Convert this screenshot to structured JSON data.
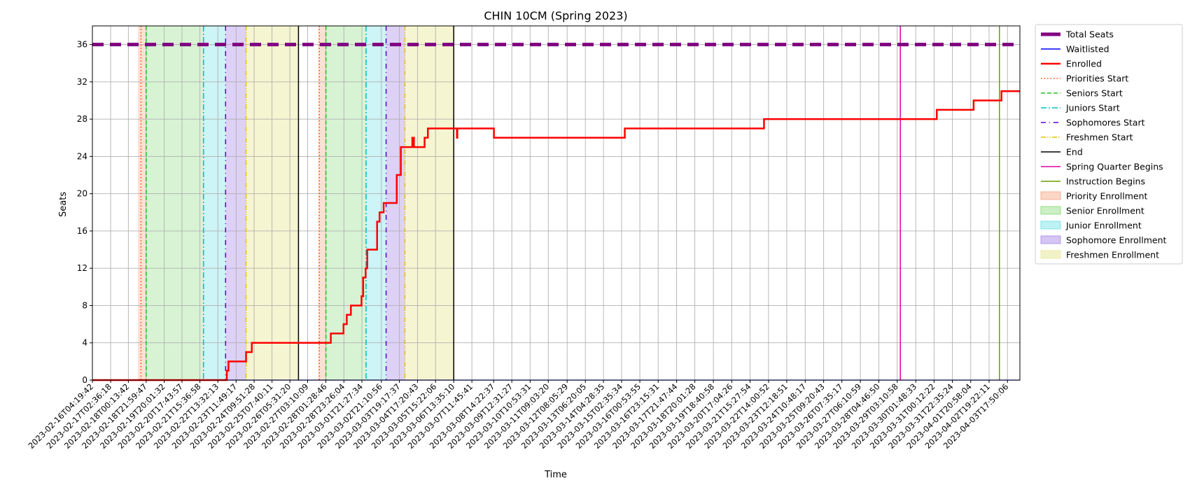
{
  "chart_data": {
    "type": "line",
    "title": "CHIN 10CM (Spring 2023)",
    "xlabel": "Time",
    "ylabel": "Seats",
    "ylim": [
      0,
      38
    ],
    "yticks": [
      0,
      4,
      8,
      12,
      16,
      20,
      24,
      28,
      32,
      36
    ],
    "xlim": [
      "2023-02-16T04:19:42",
      "2023-04-04T09:00:00"
    ],
    "grid": true,
    "legend_position": "outside-right",
    "x_tick_labels": [
      "2023-02-16T04:19:42",
      "2023-02-17T02:36:18",
      "2023-02-18T00:13:42",
      "2023-02-18T21:59:47",
      "2023-02-19T20:01:32",
      "2023-02-20T17:43:57",
      "2023-02-21T15:36:58",
      "2023-02-22T13:32:13",
      "2023-02-23T11:49:17",
      "2023-02-24T09:51:28",
      "2023-02-25T07:40:11",
      "2023-02-26T05:31:20",
      "2023-02-27T03:10:09",
      "2023-02-28T01:28:46",
      "2023-02-28T23:26:04",
      "2023-03-01T21:27:34",
      "2023-03-02T21:10:56",
      "2023-03-03T19:17:37",
      "2023-03-04T17:20:43",
      "2023-03-05T15:22:06",
      "2023-03-06T13:35:10",
      "2023-03-07T11:45:41",
      "2023-03-08T14:22:37",
      "2023-03-09T12:31:27",
      "2023-03-10T10:53:31",
      "2023-03-11T09:03:20",
      "2023-03-12T08:05:29",
      "2023-03-13T06:20:05",
      "2023-03-14T04:28:35",
      "2023-03-15T02:35:34",
      "2023-03-16T00:53:55",
      "2023-03-16T23:15:31",
      "2023-03-17T21:47:44",
      "2023-03-18T20:01:28",
      "2023-03-19T18:40:58",
      "2023-03-20T17:04:26",
      "2023-03-21T15:27:54",
      "2023-03-22T14:00:52",
      "2023-03-23T12:18:51",
      "2023-03-24T10:48:17",
      "2023-03-25T09:20:43",
      "2023-03-26T07:35:17",
      "2023-03-27T06:10:59",
      "2023-03-28T04:46:50",
      "2023-03-29T03:10:58",
      "2023-03-30T01:48:33",
      "2023-03-31T00:12:22",
      "2023-03-31T22:35:24",
      "2023-04-01T20:58:04",
      "2023-04-02T19:22:11",
      "2023-04-03T17:50:06"
    ],
    "series": [
      {
        "name": "Total Seats",
        "color": "#800080",
        "style": "dashed",
        "points": [
          [
            "2023-02-16T04:19:42",
            36
          ],
          [
            "2023-04-04T09:00:00",
            36
          ]
        ]
      },
      {
        "name": "Waitlisted",
        "color": "#0000ff",
        "style": "solid",
        "points": [
          [
            "2023-02-16T04:19:42",
            0
          ],
          [
            "2023-04-04T09:00:00",
            0
          ]
        ]
      },
      {
        "name": "Enrolled",
        "color": "#ff0000",
        "style": "solid",
        "points": [
          [
            "2023-02-16T04:19:42",
            0
          ],
          [
            "2023-02-23T00:00:00",
            0
          ],
          [
            "2023-02-23T00:30:00",
            1
          ],
          [
            "2023-02-23T02:30:00",
            2
          ],
          [
            "2023-02-24T00:00:00",
            3
          ],
          [
            "2023-02-24T07:00:00",
            4
          ],
          [
            "2023-02-28T07:00:00",
            4
          ],
          [
            "2023-02-28T07:30:00",
            5
          ],
          [
            "2023-02-28T23:00:00",
            6
          ],
          [
            "2023-03-01T03:00:00",
            7
          ],
          [
            "2023-03-01T08:00:00",
            8
          ],
          [
            "2023-03-01T21:00:00",
            9
          ],
          [
            "2023-03-01T23:00:00",
            11
          ],
          [
            "2023-03-02T02:00:00",
            12
          ],
          [
            "2023-03-02T04:00:00",
            14
          ],
          [
            "2023-03-02T16:00:00",
            17
          ],
          [
            "2023-03-02T19:00:00",
            18
          ],
          [
            "2023-03-03T00:00:00",
            19
          ],
          [
            "2023-03-03T16:00:00",
            22
          ],
          [
            "2023-03-03T21:00:00",
            25
          ],
          [
            "2023-03-04T11:00:00",
            26
          ],
          [
            "2023-03-04T13:00:00",
            25
          ],
          [
            "2023-03-05T02:00:00",
            26
          ],
          [
            "2023-03-05T06:00:00",
            27
          ],
          [
            "2023-03-06T17:00:00",
            27
          ],
          [
            "2023-03-06T17:30:00",
            26
          ],
          [
            "2023-03-06T18:00:00",
            27
          ],
          [
            "2023-03-08T14:22:37",
            27
          ],
          [
            "2023-03-08T14:40:00",
            26
          ],
          [
            "2023-03-15T06:00:00",
            26
          ],
          [
            "2023-03-15T06:30:00",
            27
          ],
          [
            "2023-03-22T08:00:00",
            27
          ],
          [
            "2023-03-22T08:30:00",
            28
          ],
          [
            "2023-03-31T03:00:00",
            28
          ],
          [
            "2023-03-31T03:30:00",
            29
          ],
          [
            "2023-04-02T00:00:00",
            29
          ],
          [
            "2023-04-02T00:30:00",
            30
          ],
          [
            "2023-04-03T10:00:00",
            30
          ],
          [
            "2023-04-03T10:30:00",
            31
          ],
          [
            "2023-04-04T09:00:00",
            31
          ]
        ]
      }
    ],
    "markers": [
      {
        "name": "Priorities Start",
        "color": "#ff4500",
        "style": "dotted",
        "times": [
          "2023-02-18T15:40:00",
          "2023-02-27T17:30:00"
        ]
      },
      {
        "name": "Seniors Start",
        "color": "#22c020",
        "style": "dashed",
        "times": [
          "2023-02-18T21:59:47",
          "2023-02-28T01:28:46"
        ]
      },
      {
        "name": "Juniors Start",
        "color": "#00bfbf",
        "style": "dashdot",
        "times": [
          "2023-02-21T20:00:00",
          "2023-03-02T02:30:00"
        ]
      },
      {
        "name": "Sophomores Start",
        "color": "#5a00d6",
        "style": "loosedashdot",
        "times": [
          "2023-02-22T23:00:00",
          "2023-03-03T03:00:00"
        ]
      },
      {
        "name": "Freshmen Start",
        "color": "#e6c300",
        "style": "dashdotdot",
        "times": [
          "2023-02-24T00:00:00",
          "2023-03-04T02:00:00"
        ]
      },
      {
        "name": "End",
        "color": "#000000",
        "style": "solid",
        "times": [
          "2023-02-26T16:00:00",
          "2023-03-06T13:35:10"
        ]
      },
      {
        "name": "Spring Quarter Begins",
        "color": "#e000a0",
        "style": "solid",
        "times": [
          "2023-03-29T07:00:00"
        ]
      },
      {
        "name": "Instruction Begins",
        "color": "#6b9e00",
        "style": "solid",
        "times": [
          "2023-04-03T08:00:00"
        ]
      }
    ],
    "spans": [
      {
        "name": "Priority Enrollment",
        "color": "#f4a582",
        "opacity": 0.35,
        "ranges": [
          [
            "2023-02-18T12:00:00",
            "2023-02-18T21:59:47"
          ],
          [
            "2023-02-27T16:00:00",
            "2023-02-28T01:28:46"
          ]
        ]
      },
      {
        "name": "Senior Enrollment",
        "color": "#7fd86f",
        "opacity": 0.3,
        "ranges": [
          [
            "2023-02-18T21:59:47",
            "2023-02-21T20:00:00"
          ],
          [
            "2023-02-28T01:28:46",
            "2023-03-02T02:30:00"
          ]
        ]
      },
      {
        "name": "Junior Enrollment",
        "color": "#6fe0e6",
        "opacity": 0.35,
        "ranges": [
          [
            "2023-02-21T20:00:00",
            "2023-02-22T23:00:00"
          ],
          [
            "2023-03-02T02:30:00",
            "2023-03-03T03:00:00"
          ]
        ]
      },
      {
        "name": "Sophomore Enrollment",
        "color": "#a98be8",
        "opacity": 0.4,
        "ranges": [
          [
            "2023-02-22T23:00:00",
            "2023-02-24T00:00:00"
          ],
          [
            "2023-03-03T03:00:00",
            "2023-03-04T02:00:00"
          ]
        ]
      },
      {
        "name": "Freshmen Enrollment",
        "color": "#e8e89a",
        "opacity": 0.45,
        "ranges": [
          [
            "2023-02-24T00:00:00",
            "2023-02-26T16:00:00"
          ],
          [
            "2023-03-04T02:00:00",
            "2023-03-06T13:35:10"
          ]
        ]
      }
    ],
    "legend": [
      "Total Seats",
      "Waitlisted",
      "Enrolled",
      "Priorities Start",
      "Seniors Start",
      "Juniors Start",
      "Sophomores Start",
      "Freshmen Start",
      "End",
      "Spring Quarter Begins",
      "Instruction Begins",
      "Priority Enrollment",
      "Senior Enrollment",
      "Junior Enrollment",
      "Sophomore Enrollment",
      "Freshmen Enrollment"
    ]
  }
}
